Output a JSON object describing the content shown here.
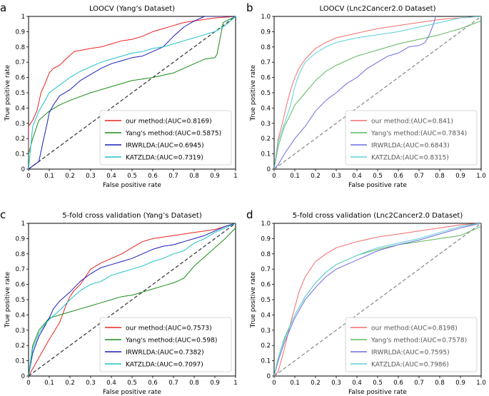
{
  "chart_data": [
    {
      "id": "a",
      "letter": "a",
      "type": "line",
      "title": "LOOCV (Yang’s Dataset)",
      "xlabel": "False positive rate",
      "ylabel": "True positive rate",
      "xlim": [
        0,
        1
      ],
      "ylim": [
        0,
        1
      ],
      "xticks": [
        "0",
        "0.1",
        "0.2",
        "0.3",
        "0.4",
        "0.5",
        "0.6",
        "0.7",
        "0.8",
        "0.9",
        "1"
      ],
      "yticks": [
        "0",
        "0.1",
        "0.2",
        "0.3",
        "0.4",
        "0.5",
        "0.6",
        "0.7",
        "0.8",
        "0.9",
        "1"
      ],
      "legend_position": "lower-right",
      "legend_text_style": "dark",
      "diagonal_color": "#333333",
      "series": [
        {
          "name": "our method:(AUC=0.8169)",
          "color": "#e8231f",
          "x": [
            0,
            0,
            0.02,
            0.04,
            0.06,
            0.08,
            0.1,
            0.12,
            0.15,
            0.18,
            0.22,
            0.26,
            0.3,
            0.35,
            0.4,
            0.45,
            0.5,
            0.55,
            0.6,
            0.65,
            0.7,
            0.75,
            0.8,
            0.85,
            0.9,
            1.0
          ],
          "y": [
            0,
            0.28,
            0.32,
            0.38,
            0.5,
            0.56,
            0.63,
            0.66,
            0.68,
            0.72,
            0.77,
            0.78,
            0.79,
            0.8,
            0.82,
            0.84,
            0.85,
            0.87,
            0.9,
            0.92,
            0.94,
            0.96,
            0.97,
            0.98,
            0.99,
            1.0
          ]
        },
        {
          "name": "Yang's method:(AUC=0.5875)",
          "color": "#1a8c1a",
          "x": [
            0,
            0,
            0.02,
            0.05,
            0.1,
            0.15,
            0.2,
            0.3,
            0.4,
            0.5,
            0.6,
            0.7,
            0.75,
            0.8,
            0.85,
            0.9,
            0.91,
            0.94,
            1.0
          ],
          "y": [
            0,
            0.1,
            0.2,
            0.32,
            0.38,
            0.42,
            0.45,
            0.5,
            0.54,
            0.58,
            0.6,
            0.63,
            0.66,
            0.69,
            0.72,
            0.73,
            0.75,
            0.96,
            1.0
          ]
        },
        {
          "name": "IRWRLDA:(AUC=0.6945)",
          "color": "#1c1cb8",
          "x": [
            0,
            0.02,
            0.05,
            0.07,
            0.09,
            0.1,
            0.12,
            0.15,
            0.2,
            0.25,
            0.3,
            0.35,
            0.4,
            0.45,
            0.5,
            0.55,
            0.6,
            0.65,
            0.7,
            0.75,
            0.8,
            0.85,
            0.9,
            1.0
          ],
          "y": [
            0,
            0.02,
            0.05,
            0.18,
            0.3,
            0.37,
            0.42,
            0.48,
            0.52,
            0.58,
            0.62,
            0.66,
            0.69,
            0.71,
            0.73,
            0.74,
            0.77,
            0.8,
            0.87,
            0.93,
            0.97,
            1.0,
            1.0,
            1.0
          ]
        },
        {
          "name": "KATZLDA:(AUC=0.7319)",
          "color": "#1ec3c8",
          "x": [
            0,
            0.02,
            0.05,
            0.08,
            0.1,
            0.15,
            0.2,
            0.25,
            0.3,
            0.35,
            0.4,
            0.45,
            0.5,
            0.55,
            0.6,
            0.65,
            0.7,
            0.75,
            0.8,
            0.85,
            0.9,
            0.95,
            1.0
          ],
          "y": [
            0,
            0.28,
            0.38,
            0.45,
            0.5,
            0.55,
            0.6,
            0.64,
            0.67,
            0.7,
            0.72,
            0.74,
            0.76,
            0.77,
            0.79,
            0.8,
            0.82,
            0.84,
            0.86,
            0.88,
            0.9,
            0.94,
            1.0
          ]
        }
      ]
    },
    {
      "id": "b",
      "letter": "b",
      "type": "line",
      "title": "LOOCV (Lnc2Cancer2.0 Dataset)",
      "xlabel": "False positive rate",
      "ylabel": "True positive rate",
      "xlim": [
        0,
        1
      ],
      "ylim": [
        0,
        1
      ],
      "xticks": [
        "0",
        "0.1",
        "0.2",
        "0.3",
        "0.4",
        "0.5",
        "0.6",
        "0.7",
        "0.8",
        "0.9",
        "1.0"
      ],
      "yticks": [
        "0",
        "0.1",
        "0.2",
        "0.3",
        "0.4",
        "0.5",
        "0.6",
        "0.7",
        "0.8",
        "0.9",
        "1.0"
      ],
      "legend_position": "lower-right",
      "legend_text_style": "gray",
      "diagonal_color": "#888888",
      "series": [
        {
          "name": "our method:(AUC=0.841)",
          "color": "#f26d6d",
          "x": [
            0,
            0.02,
            0.04,
            0.06,
            0.08,
            0.1,
            0.12,
            0.15,
            0.2,
            0.25,
            0.3,
            0.4,
            0.5,
            0.6,
            0.7,
            0.8,
            0.9,
            1.0
          ],
          "y": [
            0,
            0.2,
            0.3,
            0.42,
            0.52,
            0.6,
            0.66,
            0.72,
            0.79,
            0.83,
            0.86,
            0.89,
            0.92,
            0.94,
            0.96,
            0.98,
            0.99,
            1.0
          ]
        },
        {
          "name": "Yang's method:(AUC=0.7834)",
          "color": "#5cb85c",
          "x": [
            0,
            0.02,
            0.05,
            0.08,
            0.1,
            0.15,
            0.2,
            0.25,
            0.3,
            0.4,
            0.5,
            0.6,
            0.7,
            0.8,
            0.9,
            1.0
          ],
          "y": [
            0,
            0.15,
            0.28,
            0.36,
            0.42,
            0.5,
            0.58,
            0.64,
            0.68,
            0.74,
            0.78,
            0.82,
            0.85,
            0.88,
            0.92,
            0.97
          ]
        },
        {
          "name": "IRWRLDA:(AUC=0.6843)",
          "color": "#6b6be0",
          "x": [
            0,
            0.02,
            0.05,
            0.1,
            0.15,
            0.2,
            0.25,
            0.3,
            0.35,
            0.4,
            0.45,
            0.5,
            0.55,
            0.6,
            0.65,
            0.7,
            0.73,
            0.75,
            0.77,
            0.78
          ],
          "y": [
            0,
            0.03,
            0.1,
            0.2,
            0.28,
            0.38,
            0.45,
            0.5,
            0.56,
            0.6,
            0.66,
            0.7,
            0.74,
            0.76,
            0.8,
            0.81,
            0.83,
            0.88,
            0.95,
            1.0
          ]
        },
        {
          "name": "KATZLDA:(AUC=0.8315)",
          "color": "#5ccfd6",
          "x": [
            0,
            0.02,
            0.05,
            0.08,
            0.1,
            0.12,
            0.15,
            0.2,
            0.25,
            0.3,
            0.4,
            0.5,
            0.6,
            0.7,
            0.8,
            0.9,
            1.0
          ],
          "y": [
            0,
            0.18,
            0.3,
            0.42,
            0.54,
            0.62,
            0.7,
            0.76,
            0.8,
            0.83,
            0.86,
            0.88,
            0.9,
            0.93,
            0.96,
            0.99,
            1.0
          ]
        }
      ]
    },
    {
      "id": "c",
      "letter": "c",
      "type": "line",
      "title": "5-fold cross validation (Yang’s Dataset)",
      "xlabel": "False positive rate",
      "ylabel": "True positive rate",
      "xlim": [
        0,
        1
      ],
      "ylim": [
        0,
        1
      ],
      "xticks": [
        "0",
        "0.1",
        "0.2",
        "0.3",
        "0.4",
        "0.5",
        "0.6",
        "0.7",
        "0.8",
        "0.9",
        "1"
      ],
      "yticks": [
        "0",
        "0.1",
        "0.2",
        "0.3",
        "0.4",
        "0.5",
        "0.6",
        "0.7",
        "0.8",
        "0.9",
        "1"
      ],
      "legend_position": "lower-right",
      "legend_text_style": "dark",
      "diagonal_color": "#333333",
      "series": [
        {
          "name": "our method:(AUC=0.7573)",
          "color": "#e8231f",
          "x": [
            0,
            0.05,
            0.1,
            0.15,
            0.18,
            0.2,
            0.22,
            0.25,
            0.28,
            0.3,
            0.35,
            0.4,
            0.45,
            0.5,
            0.55,
            0.6,
            0.65,
            0.7,
            0.75,
            0.8,
            0.85,
            0.9,
            0.95,
            1.0
          ],
          "y": [
            0,
            0.12,
            0.24,
            0.35,
            0.46,
            0.52,
            0.56,
            0.6,
            0.66,
            0.7,
            0.74,
            0.77,
            0.8,
            0.84,
            0.88,
            0.9,
            0.91,
            0.92,
            0.93,
            0.94,
            0.95,
            0.96,
            0.98,
            1.0
          ]
        },
        {
          "name": "Yang's method:(AUC=0.598)",
          "color": "#1a8c1a",
          "x": [
            0,
            0.02,
            0.05,
            0.1,
            0.15,
            0.2,
            0.25,
            0.3,
            0.35,
            0.4,
            0.45,
            0.5,
            0.55,
            0.6,
            0.65,
            0.7,
            0.75,
            0.8,
            0.85,
            0.9,
            0.95,
            1.0
          ],
          "y": [
            0,
            0.2,
            0.3,
            0.38,
            0.4,
            0.42,
            0.44,
            0.46,
            0.48,
            0.5,
            0.52,
            0.53,
            0.55,
            0.57,
            0.59,
            0.61,
            0.64,
            0.72,
            0.78,
            0.84,
            0.9,
            0.97
          ]
        },
        {
          "name": "IRWRLDA:(AUC=0.7382)",
          "color": "#1c1cb8",
          "x": [
            0,
            0.02,
            0.05,
            0.08,
            0.1,
            0.12,
            0.15,
            0.2,
            0.25,
            0.3,
            0.35,
            0.4,
            0.45,
            0.5,
            0.55,
            0.6,
            0.65,
            0.7,
            0.75,
            0.8,
            0.85,
            0.9,
            0.95,
            1.0
          ],
          "y": [
            0,
            0.15,
            0.26,
            0.33,
            0.38,
            0.44,
            0.49,
            0.55,
            0.62,
            0.67,
            0.71,
            0.73,
            0.75,
            0.77,
            0.8,
            0.83,
            0.85,
            0.86,
            0.88,
            0.9,
            0.92,
            0.95,
            0.98,
            1.0
          ]
        },
        {
          "name": "KATZLDA:(AUC=0.7097)",
          "color": "#1ec3c8",
          "x": [
            0,
            0.02,
            0.05,
            0.08,
            0.1,
            0.15,
            0.2,
            0.25,
            0.3,
            0.35,
            0.4,
            0.45,
            0.5,
            0.55,
            0.6,
            0.65,
            0.7,
            0.75,
            0.8,
            0.85,
            0.9,
            0.95,
            1.0
          ],
          "y": [
            0,
            0.18,
            0.28,
            0.34,
            0.37,
            0.43,
            0.5,
            0.56,
            0.6,
            0.62,
            0.66,
            0.68,
            0.7,
            0.72,
            0.75,
            0.77,
            0.8,
            0.82,
            0.87,
            0.9,
            0.94,
            0.97,
            1.0
          ]
        }
      ]
    },
    {
      "id": "d",
      "letter": "d",
      "type": "line",
      "title": "5-fold cross validation (Lnc2Cancer2.0 Dataset)",
      "xlabel": "False positive rate",
      "ylabel": "True positive rate",
      "xlim": [
        0,
        1
      ],
      "ylim": [
        0,
        1
      ],
      "xticks": [
        "0",
        "0.1",
        "0.2",
        "0.3",
        "0.4",
        "0.5",
        "0.6",
        "0.7",
        "0.8",
        "0.9",
        "1.0"
      ],
      "yticks": [
        "0",
        "0.1",
        "0.2",
        "0.3",
        "0.4",
        "0.5",
        "0.6",
        "0.7",
        "0.8",
        "0.9",
        "1.0"
      ],
      "legend_position": "lower-right",
      "legend_text_style": "gray",
      "diagonal_color": "#888888",
      "series": [
        {
          "name": "our method:(AUC=0.8198)",
          "color": "#f26d6d",
          "x": [
            0,
            0.02,
            0.05,
            0.08,
            0.1,
            0.12,
            0.15,
            0.2,
            0.25,
            0.3,
            0.35,
            0.4,
            0.5,
            0.6,
            0.7,
            0.8,
            0.9,
            1.0
          ],
          "y": [
            0,
            0.03,
            0.18,
            0.35,
            0.45,
            0.55,
            0.65,
            0.75,
            0.8,
            0.84,
            0.86,
            0.88,
            0.91,
            0.93,
            0.95,
            0.97,
            0.99,
            1.0
          ]
        },
        {
          "name": "Yang's method:(AUC=0.7578)",
          "color": "#5cb85c",
          "x": [
            0,
            0.02,
            0.05,
            0.1,
            0.15,
            0.2,
            0.25,
            0.3,
            0.4,
            0.5,
            0.6,
            0.7,
            0.8,
            0.9,
            1.0
          ],
          "y": [
            0,
            0.12,
            0.25,
            0.4,
            0.52,
            0.61,
            0.68,
            0.73,
            0.79,
            0.83,
            0.86,
            0.88,
            0.9,
            0.92,
            0.98
          ]
        },
        {
          "name": "IRWRLDA:(AUC=0.7595)",
          "color": "#6b6be0",
          "x": [
            0,
            0.02,
            0.05,
            0.1,
            0.15,
            0.2,
            0.25,
            0.3,
            0.4,
            0.5,
            0.6,
            0.7,
            0.8,
            0.9,
            1.0
          ],
          "y": [
            0,
            0.1,
            0.22,
            0.38,
            0.5,
            0.58,
            0.65,
            0.7,
            0.76,
            0.82,
            0.86,
            0.89,
            0.93,
            0.97,
            1.0
          ]
        },
        {
          "name": "KATZLDA:(AUC=0.7986)",
          "color": "#5ccfd6",
          "x": [
            0,
            0.02,
            0.05,
            0.1,
            0.15,
            0.2,
            0.25,
            0.3,
            0.4,
            0.5,
            0.6,
            0.7,
            0.8,
            0.9,
            1.0
          ],
          "y": [
            0,
            0.12,
            0.24,
            0.4,
            0.52,
            0.61,
            0.68,
            0.73,
            0.79,
            0.84,
            0.87,
            0.9,
            0.94,
            0.98,
            1.0
          ]
        }
      ]
    }
  ]
}
